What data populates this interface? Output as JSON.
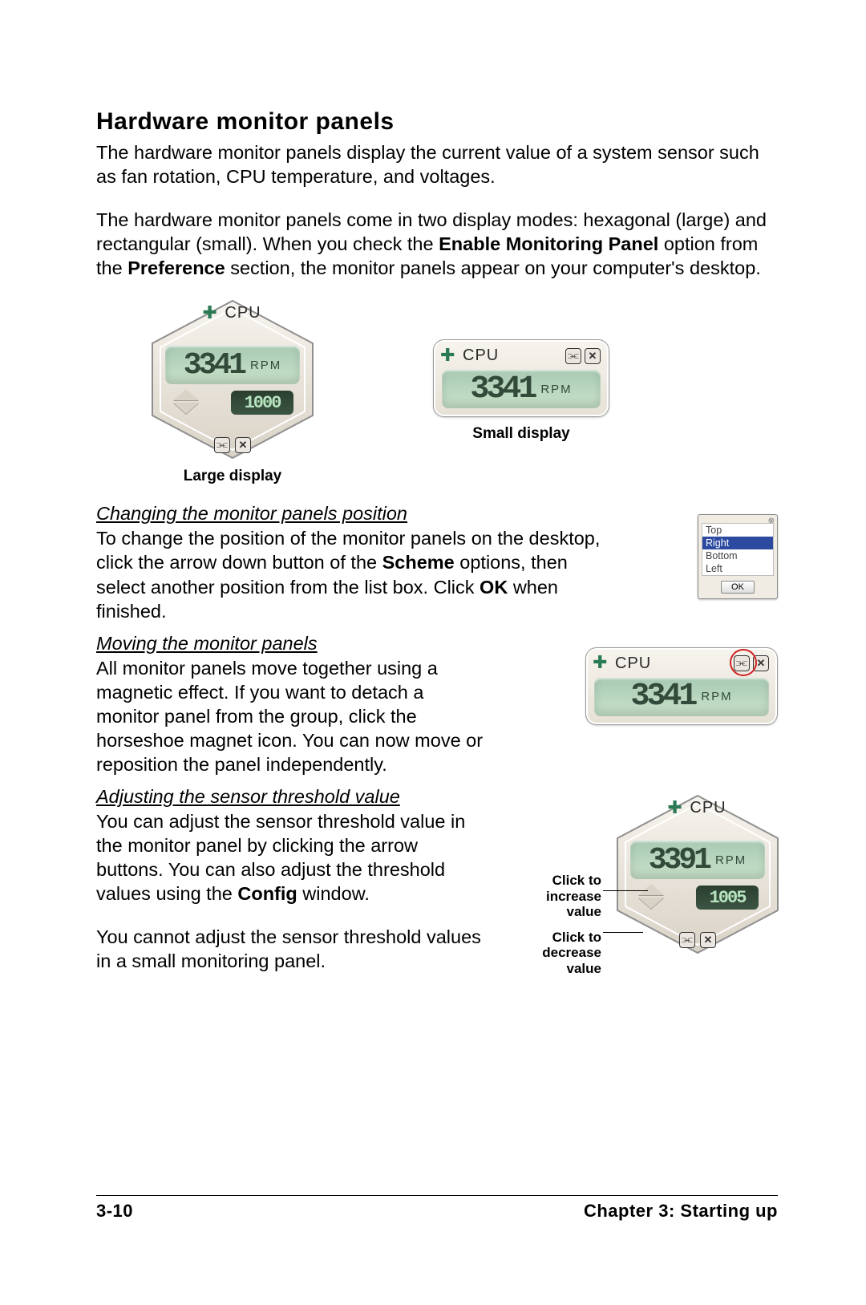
{
  "title": "Hardware monitor panels",
  "para1": "The hardware monitor panels display the current value of a system sensor such as fan rotation, CPU temperature, and voltages.",
  "para2_a": "The hardware monitor panels come in two display modes: hexagonal (large) and rectangular (small). When you check the ",
  "para2_bold1": "Enable Monitoring Panel",
  "para2_b": " option from the ",
  "para2_bold2": "Preference",
  "para2_c": " section, the monitor panels appear on your computer's desktop.",
  "caption_large": "Large display",
  "caption_small": "Small display",
  "sub1": "Changing the monitor panels position",
  "sub1_text_a": "To change the position of the monitor panels on the desktop, click the arrow down button of the ",
  "sub1_bold1": "Scheme",
  "sub1_text_b": " options, then select another position from the list box. Click ",
  "sub1_bold2": "OK",
  "sub1_text_c": " when finished.",
  "sub2": "Moving the monitor panels",
  "sub2_text": "All monitor panels move together using a magnetic effect. If you want to detach a monitor panel from the group, click the horseshoe magnet icon. You can now move or reposition the panel independently.",
  "sub3": "Adjusting the sensor threshold value",
  "sub3_text_a": "You can adjust the sensor threshold value in the monitor panel by clicking the arrow buttons. You can also adjust the threshold values using the ",
  "sub3_bold1": "Config",
  "sub3_text_b": " window.",
  "sub3_text2": "You cannot adjust the sensor threshold values in a small monitoring panel.",
  "annot_increase": "Click to increase value",
  "annot_decrease": "Click to decrease value",
  "panel": {
    "cpu_label": "CPU",
    "rpm_unit": "RPM",
    "main_value_1": "3341",
    "main_value_2": "3341",
    "main_value_3": "3341",
    "main_value_4": "3391",
    "thresh_1": "1000",
    "thresh_2": "1005"
  },
  "scheme": {
    "items": [
      "Top",
      "Right",
      "Bottom",
      "Left"
    ],
    "selected_index": 1,
    "ok": "OK"
  },
  "colors": {
    "lcd_bg_top": "#a8c9b4",
    "lcd_bg_bot": "#c9e3c9",
    "lcd_text": "#324a3a",
    "thresh_bg": "#2a3e30",
    "thresh_text": "#b7e4be",
    "bezel_top": "#f7f4ee",
    "bezel_bot": "#e6e0d5",
    "annot_red": "#d02020",
    "scheme_sel": "#2b4aa0"
  },
  "footer_left": "3-10",
  "footer_right": "Chapter 3: Starting up"
}
